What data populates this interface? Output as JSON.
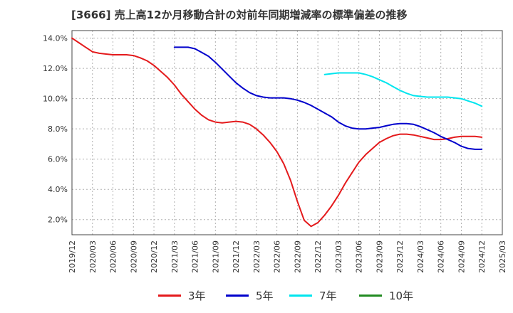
{
  "chart_data": {
    "type": "line",
    "title": "[3666]  売上高12か月移動合計の対前年同期増減率の標準偏差の推移",
    "xlabel": "",
    "ylabel": "",
    "ylim": [
      1.0,
      14.5
    ],
    "yticks": [
      "2.0%",
      "4.0%",
      "6.0%",
      "8.0%",
      "10.0%",
      "12.0%",
      "14.0%"
    ],
    "ytick_values": [
      2,
      4,
      6,
      8,
      10,
      12,
      14
    ],
    "x_tick_labels": [
      "2019/12",
      "2020/03",
      "2020/06",
      "2020/09",
      "2020/12",
      "2021/03",
      "2021/06",
      "2021/09",
      "2021/12",
      "2022/03",
      "2022/06",
      "2022/09",
      "2022/12",
      "2023/03",
      "2023/06",
      "2023/09",
      "2023/12",
      "2024/03",
      "2024/06",
      "2024/09",
      "2024/12",
      "2025/03"
    ],
    "grid": true,
    "legend_position": "bottom",
    "series": [
      {
        "name": "3年",
        "color": "#e41a1c",
        "points": [
          [
            "2019/12",
            14.0
          ],
          [
            "2020/01",
            13.7
          ],
          [
            "2020/02",
            13.4
          ],
          [
            "2020/03",
            13.1
          ],
          [
            "2020/04",
            13.0
          ],
          [
            "2020/05",
            12.95
          ],
          [
            "2020/06",
            12.9
          ],
          [
            "2020/07",
            12.9
          ],
          [
            "2020/08",
            12.9
          ],
          [
            "2020/09",
            12.85
          ],
          [
            "2020/10",
            12.7
          ],
          [
            "2020/11",
            12.5
          ],
          [
            "2020/12",
            12.2
          ],
          [
            "2021/01",
            11.8
          ],
          [
            "2021/02",
            11.4
          ],
          [
            "2021/03",
            10.9
          ],
          [
            "2021/04",
            10.3
          ],
          [
            "2021/05",
            9.8
          ],
          [
            "2021/06",
            9.3
          ],
          [
            "2021/07",
            8.9
          ],
          [
            "2021/08",
            8.6
          ],
          [
            "2021/09",
            8.45
          ],
          [
            "2021/10",
            8.4
          ],
          [
            "2021/11",
            8.45
          ],
          [
            "2021/12",
            8.5
          ],
          [
            "2022/01",
            8.45
          ],
          [
            "2022/02",
            8.3
          ],
          [
            "2022/03",
            8.0
          ],
          [
            "2022/04",
            7.6
          ],
          [
            "2022/05",
            7.1
          ],
          [
            "2022/06",
            6.5
          ],
          [
            "2022/07",
            5.7
          ],
          [
            "2022/08",
            4.6
          ],
          [
            "2022/09",
            3.2
          ],
          [
            "2022/10",
            1.95
          ],
          [
            "2022/11",
            1.55
          ],
          [
            "2022/12",
            1.8
          ],
          [
            "2023/01",
            2.3
          ],
          [
            "2023/02",
            2.9
          ],
          [
            "2023/03",
            3.6
          ],
          [
            "2023/04",
            4.4
          ],
          [
            "2023/05",
            5.1
          ],
          [
            "2023/06",
            5.8
          ],
          [
            "2023/07",
            6.3
          ],
          [
            "2023/08",
            6.7
          ],
          [
            "2023/09",
            7.1
          ],
          [
            "2023/10",
            7.35
          ],
          [
            "2023/11",
            7.55
          ],
          [
            "2023/12",
            7.65
          ],
          [
            "2024/01",
            7.65
          ],
          [
            "2024/02",
            7.6
          ],
          [
            "2024/03",
            7.5
          ],
          [
            "2024/04",
            7.4
          ],
          [
            "2024/05",
            7.3
          ],
          [
            "2024/06",
            7.3
          ],
          [
            "2024/07",
            7.35
          ],
          [
            "2024/08",
            7.45
          ],
          [
            "2024/09",
            7.5
          ],
          [
            "2024/10",
            7.5
          ],
          [
            "2024/11",
            7.5
          ],
          [
            "2024/12",
            7.45
          ]
        ]
      },
      {
        "name": "5年",
        "color": "#0000cc",
        "points": [
          [
            "2021/03",
            13.4
          ],
          [
            "2021/04",
            13.4
          ],
          [
            "2021/05",
            13.4
          ],
          [
            "2021/06",
            13.3
          ],
          [
            "2021/07",
            13.05
          ],
          [
            "2021/08",
            12.8
          ],
          [
            "2021/09",
            12.4
          ],
          [
            "2021/10",
            11.95
          ],
          [
            "2021/11",
            11.5
          ],
          [
            "2021/12",
            11.05
          ],
          [
            "2022/01",
            10.7
          ],
          [
            "2022/02",
            10.4
          ],
          [
            "2022/03",
            10.2
          ],
          [
            "2022/04",
            10.1
          ],
          [
            "2022/05",
            10.05
          ],
          [
            "2022/06",
            10.05
          ],
          [
            "2022/07",
            10.05
          ],
          [
            "2022/08",
            10.0
          ],
          [
            "2022/09",
            9.9
          ],
          [
            "2022/10",
            9.75
          ],
          [
            "2022/11",
            9.55
          ],
          [
            "2022/12",
            9.3
          ],
          [
            "2023/01",
            9.05
          ],
          [
            "2023/02",
            8.8
          ],
          [
            "2023/03",
            8.45
          ],
          [
            "2023/04",
            8.2
          ],
          [
            "2023/05",
            8.05
          ],
          [
            "2023/06",
            8.0
          ],
          [
            "2023/07",
            8.0
          ],
          [
            "2023/08",
            8.05
          ],
          [
            "2023/09",
            8.1
          ],
          [
            "2023/10",
            8.2
          ],
          [
            "2023/11",
            8.3
          ],
          [
            "2023/12",
            8.35
          ],
          [
            "2024/01",
            8.35
          ],
          [
            "2024/02",
            8.3
          ],
          [
            "2024/03",
            8.15
          ],
          [
            "2024/04",
            7.95
          ],
          [
            "2024/05",
            7.75
          ],
          [
            "2024/06",
            7.5
          ],
          [
            "2024/07",
            7.3
          ],
          [
            "2024/08",
            7.1
          ],
          [
            "2024/09",
            6.85
          ],
          [
            "2024/10",
            6.7
          ],
          [
            "2024/11",
            6.65
          ],
          [
            "2024/12",
            6.65
          ]
        ]
      },
      {
        "name": "7年",
        "color": "#00e5ee",
        "points": [
          [
            "2023/01",
            11.6
          ],
          [
            "2023/02",
            11.65
          ],
          [
            "2023/03",
            11.7
          ],
          [
            "2023/04",
            11.7
          ],
          [
            "2023/05",
            11.7
          ],
          [
            "2023/06",
            11.7
          ],
          [
            "2023/07",
            11.6
          ],
          [
            "2023/08",
            11.45
          ],
          [
            "2023/09",
            11.25
          ],
          [
            "2023/10",
            11.05
          ],
          [
            "2023/11",
            10.8
          ],
          [
            "2023/12",
            10.55
          ],
          [
            "2024/01",
            10.35
          ],
          [
            "2024/02",
            10.2
          ],
          [
            "2024/03",
            10.15
          ],
          [
            "2024/04",
            10.1
          ],
          [
            "2024/05",
            10.1
          ],
          [
            "2024/06",
            10.1
          ],
          [
            "2024/07",
            10.1
          ],
          [
            "2024/08",
            10.05
          ],
          [
            "2024/09",
            10.0
          ],
          [
            "2024/10",
            9.85
          ],
          [
            "2024/11",
            9.7
          ],
          [
            "2024/12",
            9.5
          ]
        ]
      },
      {
        "name": "10年",
        "color": "#228b22",
        "points": []
      }
    ]
  }
}
